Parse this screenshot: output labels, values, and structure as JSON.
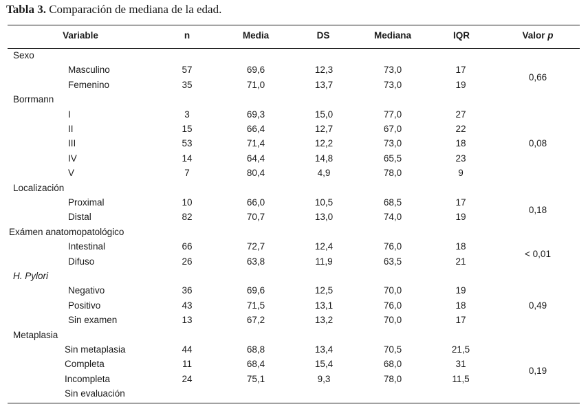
{
  "caption": {
    "label": "Tabla 3.",
    "text": " Comparación de mediana de la edad."
  },
  "headers": [
    "Variable",
    "n",
    "Media",
    "DS",
    "Mediana",
    "IQR",
    "Valor p"
  ],
  "header_p": {
    "prefix": "Valor ",
    "italic": "p"
  },
  "groups": [
    {
      "name": "Sexo",
      "italic": false,
      "p": "0,66",
      "rows": [
        [
          "Masculino",
          "57",
          "69,6",
          "12,3",
          "73,0",
          "17"
        ],
        [
          "Femenino",
          "35",
          "71,0",
          "13,7",
          "73,0",
          "19"
        ]
      ]
    },
    {
      "name": "Borrmann",
      "italic": false,
      "p": "0,08",
      "rows": [
        [
          "I",
          "3",
          "69,3",
          "15,0",
          "77,0",
          "27"
        ],
        [
          "II",
          "15",
          "66,4",
          "12,7",
          "67,0",
          "22"
        ],
        [
          "III",
          "53",
          "71,4",
          "12,2",
          "73,0",
          "18"
        ],
        [
          "IV",
          "14",
          "64,4",
          "14,8",
          "65,5",
          "23"
        ],
        [
          "V",
          "7",
          "80,4",
          "4,9",
          "78,0",
          "9"
        ]
      ]
    },
    {
      "name": "Localización",
      "italic": false,
      "p": "0,18",
      "rows": [
        [
          "Proximal",
          "10",
          "66,0",
          "10,5",
          "68,5",
          "17"
        ],
        [
          "Distal",
          "82",
          "70,7",
          "13,0",
          "74,0",
          "19"
        ]
      ]
    },
    {
      "name": "Exámen anatomopatológico",
      "italic": false,
      "p": "< 0,01",
      "rows": [
        [
          "Intestinal",
          "66",
          "72,7",
          "12,4",
          "76,0",
          "18"
        ],
        [
          "Difuso",
          "26",
          "63,8",
          "11,9",
          "63,5",
          "21"
        ]
      ]
    },
    {
      "name": "H. Pylori",
      "italic": true,
      "p": "0,49",
      "rows": [
        [
          "Negativo",
          "36",
          "69,6",
          "12,5",
          "70,0",
          "19"
        ],
        [
          "Positivo",
          "43",
          "71,5",
          "13,1",
          "76,0",
          "18"
        ],
        [
          "Sin examen",
          "13",
          "67,2",
          "13,2",
          "70,0",
          "17"
        ]
      ]
    },
    {
      "name": "Metaplasia",
      "italic": false,
      "p": "0,19",
      "rows": [
        [
          "Sin metaplasia",
          "44",
          "68,8",
          "13,4",
          "70,5",
          "21,5"
        ],
        [
          "Completa",
          "11",
          "68,4",
          "15,4",
          "68,0",
          "31"
        ],
        [
          "Incompleta",
          "24",
          "75,1",
          "9,3",
          "78,0",
          "11,5"
        ],
        [
          "Sin evaluación",
          "",
          "",
          "",
          "",
          ""
        ]
      ]
    }
  ]
}
